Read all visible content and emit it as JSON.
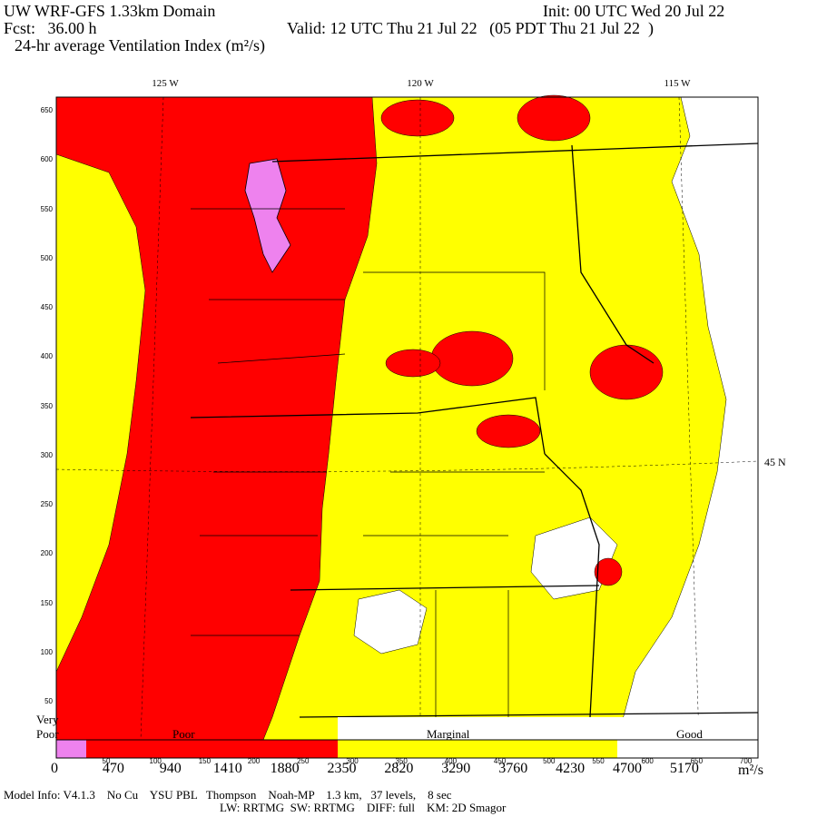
{
  "header": {
    "title": "UW WRF-GFS 1.33km Domain",
    "init": "Init: 00 UTC Wed 20 Jul 22",
    "forecast": "Fcst:   36.00 h",
    "valid": "Valid: 12 UTC Thu 21 Jul 22   (05 PDT Thu 21 Jul 22  )",
    "field": "24-hr average Ventilation Index (m²/s)"
  },
  "map": {
    "longitude_labels": [
      "125 W",
      "120 W",
      "115 W"
    ],
    "latitude_label": "45 N",
    "y_grid_labels": [
      "650",
      "600",
      "550",
      "500",
      "450",
      "400",
      "350",
      "300",
      "250",
      "200",
      "150",
      "100",
      "50"
    ],
    "x_grid_labels": [
      "50",
      "100",
      "150",
      "200",
      "250",
      "300",
      "350",
      "400",
      "450",
      "500",
      "550",
      "600",
      "650",
      "700"
    ]
  },
  "legend": {
    "categories": [
      "Very Poor",
      "Poor",
      "Marginal",
      "Good"
    ],
    "ticks": [
      "0",
      "470",
      "940",
      "1410",
      "1880",
      "2350",
      "2820",
      "3290",
      "3760",
      "4230",
      "4700",
      "5170"
    ],
    "unit": "m²/s"
  },
  "footer": {
    "line1": "Model Info: V4.1.3    No Cu    YSU PBL   Thompson    Noah-MP    1.3 km,   37 levels,    8 sec",
    "line2": "LW: RRTMG  SW: RRTMG    DIFF: full    KM: 2D Smagor"
  }
}
